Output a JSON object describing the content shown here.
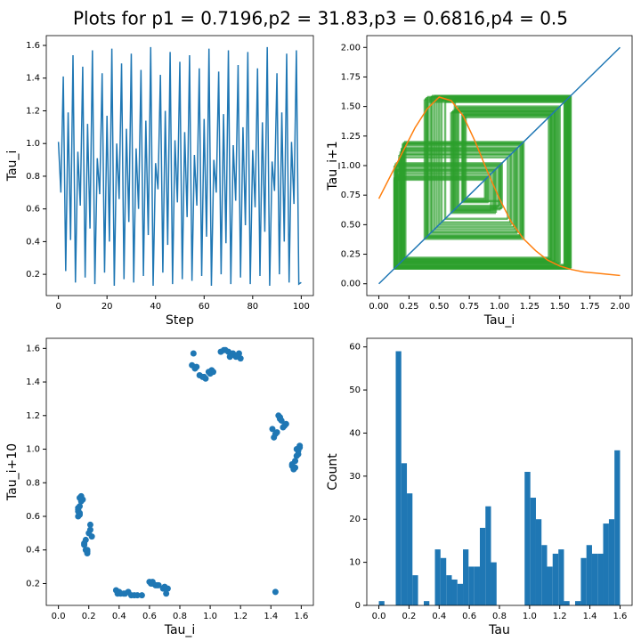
{
  "title": "Plots for p1 = 0.7196,p2 = 31.83,p3 = 0.6816,p4 = 0.5",
  "chart_data": [
    {
      "type": "line",
      "xlabel": "Step",
      "ylabel": "Tau_i",
      "color": "#1f77b4",
      "x": [
        0,
        1,
        2,
        3,
        4,
        5,
        6,
        7,
        8,
        9,
        10,
        11,
        12,
        13,
        14,
        15,
        16,
        17,
        18,
        19,
        20,
        21,
        22,
        23,
        24,
        25,
        26,
        27,
        28,
        29,
        30,
        31,
        32,
        33,
        34,
        35,
        36,
        37,
        38,
        39,
        40,
        41,
        42,
        43,
        44,
        45,
        46,
        47,
        48,
        49,
        50,
        51,
        52,
        53,
        54,
        55,
        56,
        57,
        58,
        59,
        60,
        61,
        62,
        63,
        64,
        65,
        66,
        67,
        68,
        69,
        70,
        71,
        72,
        73,
        74,
        75,
        76,
        77,
        78,
        79,
        80,
        81,
        82,
        83,
        84,
        85,
        86,
        87,
        88,
        89,
        90,
        91,
        92,
        93,
        94,
        95,
        96,
        97,
        98,
        99,
        100
      ],
      "values": [
        1.01,
        0.7,
        1.41,
        0.22,
        1.19,
        0.41,
        1.54,
        0.15,
        0.95,
        0.62,
        1.47,
        0.18,
        1.12,
        0.48,
        1.57,
        0.14,
        0.91,
        0.69,
        1.43,
        0.21,
        1.17,
        0.4,
        1.58,
        0.13,
        1.0,
        0.66,
        1.49,
        0.17,
        1.09,
        0.52,
        1.55,
        0.15,
        0.97,
        0.6,
        1.45,
        0.19,
        1.14,
        0.44,
        1.59,
        0.13,
        0.88,
        0.72,
        1.42,
        0.21,
        1.2,
        0.38,
        1.56,
        0.14,
        1.02,
        0.64,
        1.5,
        0.17,
        1.07,
        0.55,
        1.54,
        0.16,
        0.93,
        0.62,
        1.46,
        0.19,
        1.15,
        0.43,
        1.58,
        0.13,
        0.9,
        0.7,
        1.44,
        0.2,
        1.18,
        0.39,
        1.57,
        0.14,
        0.99,
        0.65,
        1.48,
        0.18,
        1.1,
        0.5,
        1.56,
        0.14,
        0.96,
        0.61,
        1.46,
        0.19,
        1.13,
        0.46,
        1.59,
        0.13,
        0.89,
        0.71,
        1.43,
        0.2,
        1.19,
        0.4,
        1.55,
        0.15,
        1.01,
        0.63,
        1.57,
        0.14,
        0.15
      ],
      "xlim": [
        -5,
        105
      ],
      "xticks": [
        0,
        20,
        40,
        60,
        80,
        100
      ],
      "ylim": [
        0.07,
        1.66
      ],
      "yticks": [
        0.2,
        0.4,
        0.6,
        0.8,
        {
          "value": 1,
          "label": "1.0"
        },
        1.2,
        1.4,
        1.6
      ]
    },
    {
      "type": "cobweb",
      "xlabel": "Tau_i",
      "ylabel": "Tau_i+1",
      "cobweb_color": "#2ca02c",
      "series": [
        {
          "color": "#1f77b4",
          "x": [
            0,
            2
          ],
          "values": [
            0,
            2
          ]
        },
        {
          "color": "#ff7f0e",
          "x": [
            0,
            0.1,
            0.2,
            0.3,
            0.4,
            0.5,
            0.6,
            0.7,
            0.8,
            0.9,
            1.0,
            1.1,
            1.2,
            1.3,
            1.4,
            1.5,
            1.6,
            1.7,
            1.8,
            1.9,
            2.0
          ],
          "values": [
            0.72,
            0.92,
            1.12,
            1.32,
            1.48,
            1.58,
            1.55,
            1.42,
            1.2,
            0.95,
            0.72,
            0.52,
            0.38,
            0.28,
            0.2,
            0.15,
            0.12,
            0.1,
            0.09,
            0.08,
            0.07
          ]
        }
      ],
      "xlim": [
        -0.1,
        2.1
      ],
      "ylim": [
        -0.1,
        2.1
      ],
      "xticks": [
        {
          "value": 0,
          "label": "0.00"
        },
        {
          "value": 0.25,
          "label": "0.25"
        },
        {
          "value": 0.5,
          "label": "0.50"
        },
        {
          "value": 0.75,
          "label": "0.75"
        },
        {
          "value": 1,
          "label": "1.00"
        },
        {
          "value": 1.25,
          "label": "1.25"
        },
        {
          "value": 1.5,
          "label": "1.50"
        },
        {
          "value": 1.75,
          "label": "1.75"
        },
        {
          "value": 2,
          "label": "2.00"
        }
      ],
      "yticks": [
        {
          "value": 0,
          "label": "0.00"
        },
        {
          "value": 0.25,
          "label": "0.25"
        },
        {
          "value": 0.5,
          "label": "0.50"
        },
        {
          "value": 0.75,
          "label": "0.75"
        },
        {
          "value": 1,
          "label": "1.00"
        },
        {
          "value": 1.25,
          "label": "1.25"
        },
        {
          "value": 1.5,
          "label": "1.50"
        },
        {
          "value": 1.75,
          "label": "1.75"
        },
        {
          "value": 2,
          "label": "2.00"
        }
      ]
    },
    {
      "type": "lag-scatter",
      "xlabel": "Tau_i",
      "ylabel": "Tau_i+10",
      "color": "#1f77b4",
      "lag": 10,
      "xlim": [
        -0.08,
        1.68
      ],
      "ylim": [
        0.07,
        1.66
      ],
      "xticks": [
        {
          "value": 0,
          "label": "0.0"
        },
        0.2,
        0.4,
        0.6,
        0.8,
        {
          "value": 1,
          "label": "1.0"
        },
        1.2,
        1.4,
        1.6
      ],
      "yticks": [
        0.2,
        0.4,
        0.6,
        0.8,
        {
          "value": 1,
          "label": "1.0"
        },
        1.2,
        1.4,
        1.6
      ]
    },
    {
      "type": "histogram",
      "xlabel": "Tau",
      "ylabel": "Count",
      "color": "#1f77b4",
      "bins": [
        0,
        0.037,
        0.074,
        0.112,
        0.149,
        0.186,
        0.223,
        0.26,
        0.298,
        0.335,
        0.372,
        0.409,
        0.447,
        0.484,
        0.521,
        0.558,
        0.595,
        0.633,
        0.67,
        0.707,
        0.744,
        0.781,
        0.819,
        0.856,
        0.893,
        0.93,
        0.967,
        1.005,
        1.042,
        1.079,
        1.116,
        1.153,
        1.191,
        1.228,
        1.265,
        1.302,
        1.34,
        1.377,
        1.414,
        1.451,
        1.488,
        1.526,
        1.563,
        1.6
      ],
      "counts": [
        1,
        0,
        0,
        59,
        33,
        26,
        7,
        0,
        1,
        0,
        13,
        11,
        7,
        6,
        5,
        13,
        9,
        9,
        18,
        23,
        10,
        0,
        0,
        0,
        0,
        0,
        31,
        25,
        20,
        14,
        9,
        12,
        13,
        1,
        0,
        1,
        11,
        14,
        12,
        12,
        19,
        20,
        36
      ],
      "xlim": [
        -0.08,
        1.68
      ],
      "ylim": [
        0,
        62
      ],
      "xticks": [
        {
          "value": 0,
          "label": "0.0"
        },
        0.2,
        0.4,
        0.6,
        0.8,
        {
          "value": 1,
          "label": "1.0"
        },
        1.2,
        1.4,
        1.6
      ],
      "yticks": [
        0,
        10,
        20,
        30,
        40,
        50,
        60
      ]
    }
  ]
}
